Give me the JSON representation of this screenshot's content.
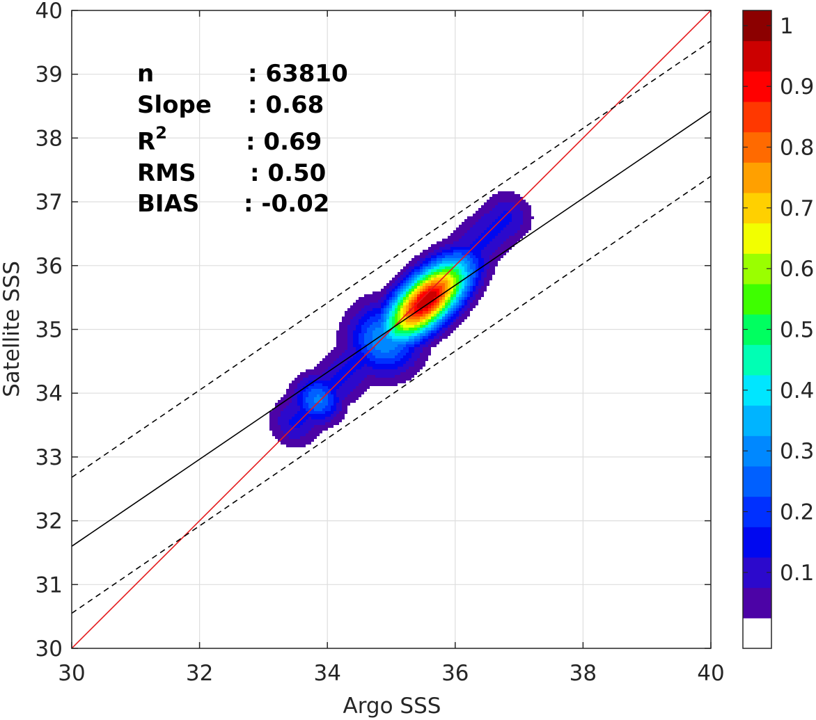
{
  "chart_data": {
    "type": "contour",
    "xlabel": "Argo SSS",
    "ylabel": "Satellite SSS",
    "xlim": [
      30,
      40
    ],
    "ylim": [
      30,
      40
    ],
    "xticks": [
      "30",
      "32",
      "34",
      "36",
      "38",
      "40"
    ],
    "yticks": [
      "30",
      "31",
      "32",
      "33",
      "34",
      "35",
      "36",
      "37",
      "38",
      "39",
      "40"
    ],
    "grid": true,
    "statistics": [
      {
        "label": "n",
        "value": ": 63810"
      },
      {
        "label": "Slope",
        "value": ": 0.68"
      },
      {
        "label": "R",
        "sup": "2",
        "value": ": 0.69"
      },
      {
        "label": "RMS",
        "value": ": 0.50"
      },
      {
        "label": "BIAS",
        "value": ": -0.02"
      }
    ],
    "lines": [
      {
        "kind": "one-to-one",
        "color": "#e41a1c",
        "style": "solid",
        "x": [
          30,
          40
        ],
        "y": [
          30,
          40
        ]
      },
      {
        "kind": "regression-fit",
        "color": "#000000",
        "style": "solid",
        "x": [
          30,
          40
        ],
        "y": [
          31.6,
          38.42
        ]
      },
      {
        "kind": "fit-plus-bound",
        "color": "#000000",
        "style": "dashed",
        "x": [
          30,
          40
        ],
        "y": [
          32.68,
          39.52
        ]
      },
      {
        "kind": "fit-minus-bound",
        "color": "#000000",
        "style": "dashed",
        "x": [
          30,
          40
        ],
        "y": [
          30.55,
          37.4
        ]
      }
    ],
    "density": {
      "colormap": "jet",
      "vmin": 0,
      "vmax": 1,
      "peak": [
        35.55,
        35.45
      ],
      "axis": [
        0.72,
        0.69
      ],
      "core_sigma_major": 0.58,
      "core_sigma_minor": 0.26,
      "tail_start": [
        33.5,
        33.55
      ],
      "tail_end": [
        36.8,
        36.75
      ],
      "tail_radius": 0.27,
      "tail_level": 0.16,
      "blobs": [
        {
          "x": 34.9,
          "y": 34.85,
          "level": 0.35,
          "radius": 0.38
        },
        {
          "x": 33.85,
          "y": 33.9,
          "level": 0.31,
          "radius": 0.26
        },
        {
          "x": 36.5,
          "y": 36.45,
          "level": 0.13,
          "radius": 0.24
        }
      ]
    },
    "colorbar": {
      "ticks": [
        "0.1",
        "0.2",
        "0.3",
        "0.4",
        "0.5",
        "0.6",
        "0.7",
        "0.8",
        "0.9",
        "1"
      ],
      "levels": 20,
      "colors": [
        "#ffffff",
        "#4c03a6",
        "#2c09cc",
        "#0008f0",
        "#0030ff",
        "#0060ff",
        "#0088ff",
        "#00b4ff",
        "#00e6ff",
        "#00ffb4",
        "#00ff60",
        "#3eff00",
        "#9aff00",
        "#f2ff00",
        "#ffd000",
        "#ffa000",
        "#ff6a00",
        "#ff3800",
        "#ff0000",
        "#cc0000",
        "#8c0000"
      ]
    }
  }
}
